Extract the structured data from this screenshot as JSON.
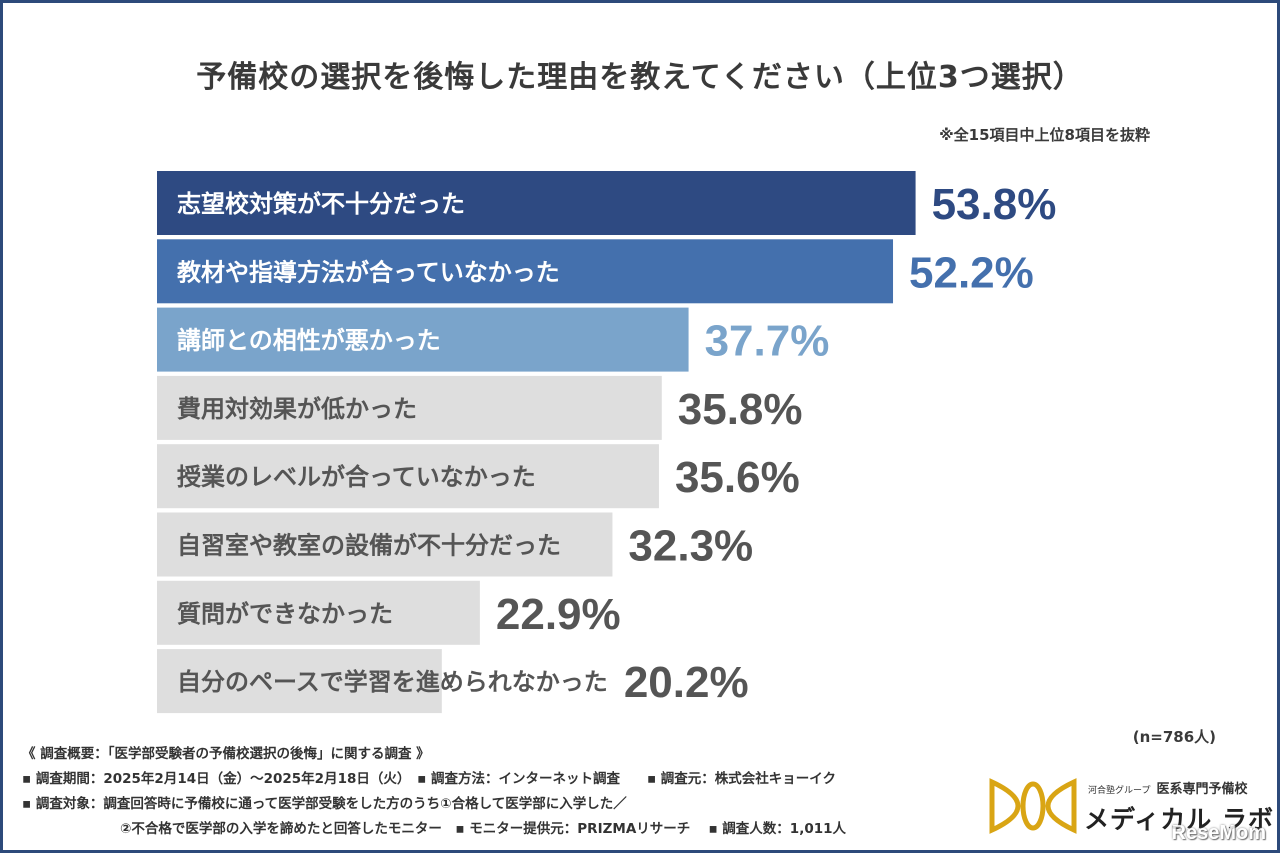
{
  "title": "予備校の選択を後悔した理由を教えてください（上位3つ選択）",
  "note": "※全15項目中上位8項目を抜粋",
  "sample_size": "(n=786人)",
  "colors": {
    "bar_top1": "#2e4a82",
    "bar_top2": "#4470ad",
    "bar_top3": "#7aa4cb",
    "bar_other": "#dedede",
    "value_top1": "#2e4a82",
    "value_top2": "#4470ad",
    "value_top3": "#7aa4cb",
    "value_other": "#555555"
  },
  "chart_data": {
    "type": "bar",
    "orientation": "horizontal",
    "categories": [
      "志望校対策が不十分だった",
      "教材や指導方法が合っていなかった",
      "講師との相性が悪かった",
      "費用対効果が低かった",
      "授業のレベルが合っていなかった",
      "自習室や教室の設備が不十分だった",
      "質問ができなかった",
      "自分のペースで学習を進められなかった"
    ],
    "values": [
      53.8,
      52.2,
      37.7,
      35.8,
      35.6,
      32.3,
      22.9,
      20.2
    ],
    "value_labels": [
      "53.8%",
      "52.2%",
      "37.7%",
      "35.8%",
      "35.6%",
      "32.3%",
      "22.9%",
      "20.2%"
    ],
    "unit": "%",
    "title": "予備校の選択を後悔した理由を教えてください（上位3つ選択）",
    "xlabel": "",
    "ylabel": "",
    "xlim": [
      0,
      100
    ],
    "grid": false
  },
  "footer": {
    "heading": "《 調査概要：「医学部受験者の予備校選択の後悔」に関する調査 》",
    "line1": "▪ 調査期間：2025年2月14日（金）〜2025年2月18日（火）　▪ 調査方法：インターネット調査　　▪ 調査元：株式会社キョーイク",
    "line2": "▪ 調査対象：調査回答時に予備校に通って医学部受験をした方のうち①合格して医学部に入学した／",
    "line3": "②不合格で医学部の入学を諦めたと回答したモニター　▪ モニター提供元：PRIZMAリサーチ　 ▪ 調査人数：1,011人"
  },
  "logo": {
    "group": "河合塾グループ",
    "school": "医系専門予備校",
    "name": "メディカル ラボ"
  },
  "watermark": "ReseMom"
}
